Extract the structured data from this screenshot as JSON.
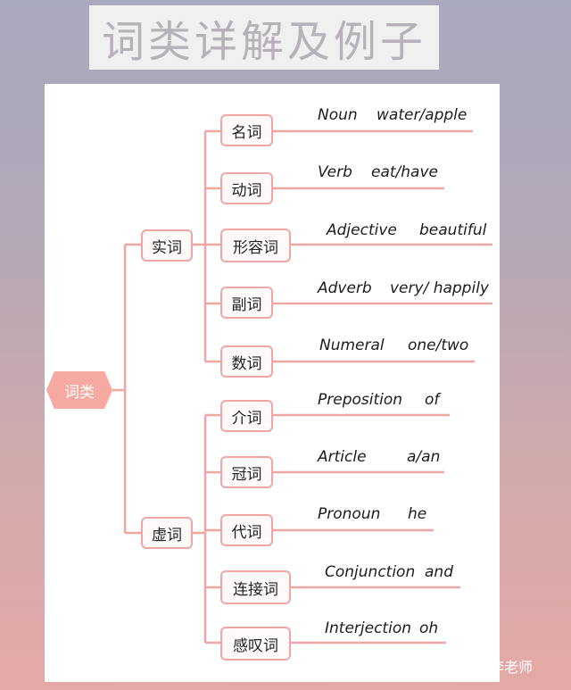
{
  "title": "词类详解及例子",
  "root": "词类",
  "groups": [
    {
      "label": "实词",
      "items": [
        {
          "cn": "名词",
          "en": "Noun",
          "example": "water/apple"
        },
        {
          "cn": "动词",
          "en": "Verb",
          "example": "eat/have"
        },
        {
          "cn": "形容词",
          "en": "Adjective",
          "example": "beautiful"
        },
        {
          "cn": "副词",
          "en": "Adverb",
          "example": "very/ happily"
        },
        {
          "cn": "数词",
          "en": "Numeral",
          "example": "one/two"
        }
      ]
    },
    {
      "label": "虚词",
      "items": [
        {
          "cn": "介词",
          "en": "Preposition",
          "example": "of"
        },
        {
          "cn": "冠词",
          "en": "Article",
          "example": "a/an"
        },
        {
          "cn": "代词",
          "en": "Pronoun",
          "example": "he"
        },
        {
          "cn": "连接词",
          "en": "Conjunction",
          "example": "and"
        },
        {
          "cn": "感叹词",
          "en": "Interjection",
          "example": "oh"
        }
      ]
    }
  ],
  "watermark": "知乎 @学大教育李老师",
  "colors": {
    "line": "#f0a6a5",
    "root_fill": "#f6a9a1",
    "node_border": "#f0a6a5"
  }
}
